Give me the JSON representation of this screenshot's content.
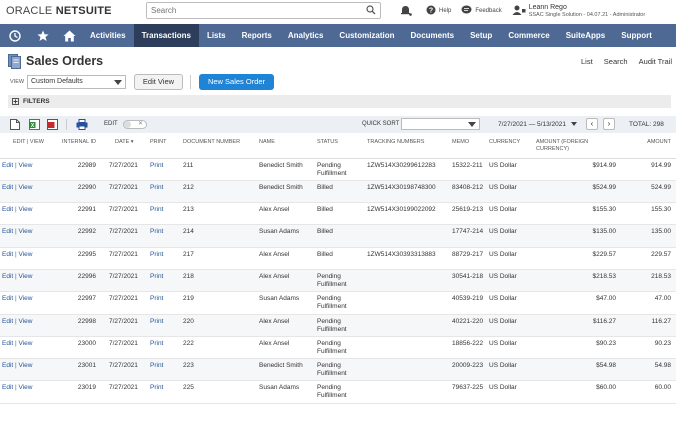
{
  "header": {
    "brand_light": "ORACLE",
    "brand_bold": "NETSUITE",
    "search_placeholder": "Search",
    "help_label": "Help",
    "feedback_label": "Feedback",
    "user_name": "Leann Rego",
    "user_role": "SSAC Single Solution - 04.07.21 - Administrator"
  },
  "nav": {
    "items": [
      "Activities",
      "Transactions",
      "Lists",
      "Reports",
      "Analytics",
      "Customization",
      "Documents",
      "Setup",
      "Commerce",
      "SuiteApps",
      "Support"
    ],
    "active": "Transactions"
  },
  "page": {
    "title": "Sales Orders",
    "links": [
      "List",
      "Search",
      "Audit Trail"
    ]
  },
  "view": {
    "label": "VIEW",
    "selected": "Custom Defaults",
    "edit_view_label": "Edit View",
    "new_label": "New Sales Order"
  },
  "filters": {
    "label": "FILTERS"
  },
  "toolbar": {
    "edit_label": "EDIT",
    "quick_sort_label": "QUICK SORT",
    "date_range": "7/27/2021 — 5/13/2021",
    "total": "TOTAL: 298"
  },
  "table": {
    "headers": [
      "EDIT | VIEW",
      "INTERNAL ID",
      "DATE ▾",
      "PRINT",
      "DOCUMENT NUMBER",
      "NAME",
      "STATUS",
      "TRACKING NUMBERS",
      "MEMO",
      "CURRENCY",
      "AMOUNT (FOREIGN CURRENCY)",
      "AMOUNT"
    ],
    "edit": "Edit",
    "view": "View",
    "print": "Print",
    "rows": [
      {
        "id": "22989",
        "date": "7/27/2021",
        "doc": "211",
        "name": "Benedict Smith",
        "status": "Pending Fulfillment",
        "tracking": "1ZW514X30299612283",
        "memo": "15322-211",
        "currency": "US Dollar",
        "fx": "$914.99",
        "amount": "914.99"
      },
      {
        "id": "22990",
        "date": "7/27/2021",
        "doc": "212",
        "name": "Benedict Smith",
        "status": "Billed",
        "tracking": "1ZW514X30198748300",
        "memo": "83408-212",
        "currency": "US Dollar",
        "fx": "$524.99",
        "amount": "524.99"
      },
      {
        "id": "22991",
        "date": "7/27/2021",
        "doc": "213",
        "name": "Alex Ansel",
        "status": "Billed",
        "tracking": "1ZW514X30199022092",
        "memo": "25619-213",
        "currency": "US Dollar",
        "fx": "$155.30",
        "amount": "155.30"
      },
      {
        "id": "22992",
        "date": "7/27/2021",
        "doc": "214",
        "name": "Susan Adams",
        "status": "Billed",
        "tracking": "",
        "memo": "17747-214",
        "currency": "US Dollar",
        "fx": "$135.00",
        "amount": "135.00"
      },
      {
        "id": "22995",
        "date": "7/27/2021",
        "doc": "217",
        "name": "Alex Ansel",
        "status": "Billed",
        "tracking": "1ZW514X30393313883",
        "memo": "88729-217",
        "currency": "US Dollar",
        "fx": "$229.57",
        "amount": "229.57"
      },
      {
        "id": "22996",
        "date": "7/27/2021",
        "doc": "218",
        "name": "Alex Ansel",
        "status": "Pending Fulfillment",
        "tracking": "",
        "memo": "30541-218",
        "currency": "US Dollar",
        "fx": "$218.53",
        "amount": "218.53"
      },
      {
        "id": "22997",
        "date": "7/27/2021",
        "doc": "219",
        "name": "Susan Adams",
        "status": "Pending Fulfillment",
        "tracking": "",
        "memo": "40539-219",
        "currency": "US Dollar",
        "fx": "$47.00",
        "amount": "47.00"
      },
      {
        "id": "22998",
        "date": "7/27/2021",
        "doc": "220",
        "name": "Alex Ansel",
        "status": "Pending Fulfillment",
        "tracking": "",
        "memo": "40221-220",
        "currency": "US Dollar",
        "fx": "$116.27",
        "amount": "116.27"
      },
      {
        "id": "23000",
        "date": "7/27/2021",
        "doc": "222",
        "name": "Alex Ansel",
        "status": "Pending Fulfillment",
        "tracking": "",
        "memo": "18856-222",
        "currency": "US Dollar",
        "fx": "$90.23",
        "amount": "90.23"
      },
      {
        "id": "23001",
        "date": "7/27/2021",
        "doc": "223",
        "name": "Benedict Smith",
        "status": "Pending Fulfillment",
        "tracking": "",
        "memo": "20009-223",
        "currency": "US Dollar",
        "fx": "$54.98",
        "amount": "54.98"
      },
      {
        "id": "23019",
        "date": "7/27/2021",
        "doc": "225",
        "name": "Susan Adams",
        "status": "Pending Fulfillment",
        "tracking": "",
        "memo": "79637-225",
        "currency": "US Dollar",
        "fx": "$60.00",
        "amount": "60.00"
      }
    ]
  },
  "colors": {
    "nav_bg": "#4d6994",
    "nav_active": "#2c3e5c",
    "primary_button": "#1f84d6",
    "link": "#255599"
  },
  "icons": [
    "search-icon",
    "bell-icon",
    "help-icon",
    "feedback-icon",
    "user-icon",
    "recent-icon",
    "star-icon",
    "home-icon",
    "sales-order-icon",
    "new-file-icon",
    "export-excel-icon",
    "export-pdf-icon",
    "print-icon"
  ]
}
